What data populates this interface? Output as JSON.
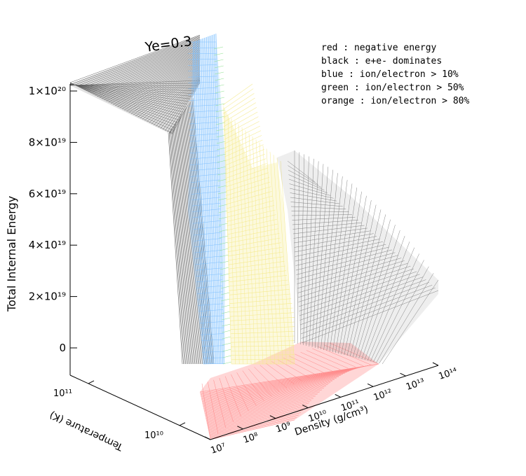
{
  "chart_data": {
    "type": "surface",
    "title": "Ye=0.3",
    "zlabel": "Total Internal Energy",
    "xlabel": "Density (g/cm³)",
    "ylabel": "Temperature (K)",
    "z_ticks": [
      "0",
      "2×10¹⁹",
      "4×10¹⁹",
      "6×10¹⁹",
      "8×10¹⁹",
      "1×10²⁰"
    ],
    "z_tick_values": [
      0,
      2e+19,
      4e+19,
      6e+19,
      8e+19,
      1e+20
    ],
    "x_ticks": [
      "10⁷",
      "10⁸",
      "10⁹",
      "10¹⁰",
      "10¹¹",
      "10¹²",
      "10¹³",
      "10¹⁴"
    ],
    "x_tick_values": [
      10000000.0,
      100000000.0,
      1000000000.0,
      10000000000.0,
      100000000000.0,
      1000000000000.0,
      10000000000000.0,
      100000000000000.0
    ],
    "y_ticks": [
      "10¹¹",
      "10¹⁰"
    ],
    "y_tick_values": [
      100000000000.0,
      10000000000.0
    ],
    "zlim": [
      -1e+19,
      1.05e+20
    ],
    "xscale": "log",
    "yscale": "log",
    "legend": [
      {
        "label": "red    : negative energy",
        "color": "#ff6b6b"
      },
      {
        "label": "black  : e+e- dominates",
        "color": "#555555"
      },
      {
        "label": "blue   : ion/electron > 10%",
        "color": "#66b3ff"
      },
      {
        "label": "green  : ion/electron > 50%",
        "color": "#6fd46f"
      },
      {
        "label": "orange : ion/electron > 80%",
        "color": "#f2e27a"
      }
    ],
    "legend_position": "top-right",
    "colors": {
      "red": "#ff8a8a",
      "black": "#5a5a5a",
      "blue": "#7fc0ff",
      "green": "#8fe08f",
      "orange": "#f5ea8e"
    }
  }
}
